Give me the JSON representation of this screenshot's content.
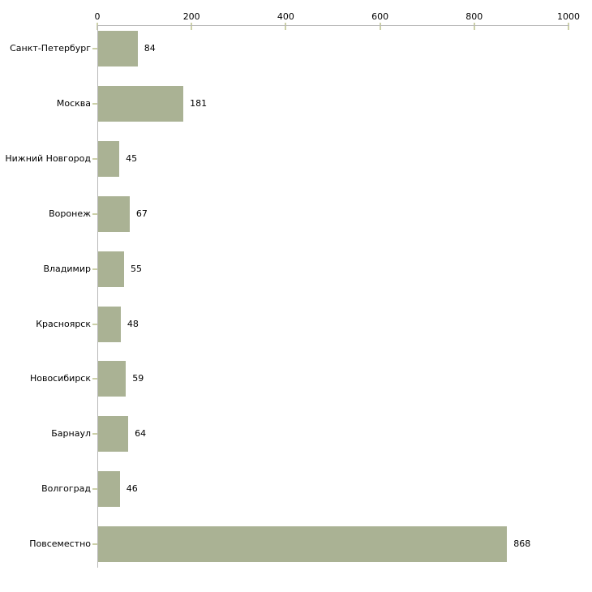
{
  "chart_data": {
    "type": "bar",
    "orientation": "horizontal",
    "title": "",
    "xlabel": "",
    "ylabel": "",
    "categories": [
      "Санкт-Петербург",
      "Москва",
      "Нижний Новгород",
      "Воронеж",
      "Владимир",
      "Красноярск",
      "Новосибирск",
      "Барнаул",
      "Волгоград",
      "Повсеместно"
    ],
    "values": [
      84,
      181,
      45,
      67,
      55,
      48,
      59,
      64,
      46,
      868
    ],
    "value_labels": [
      "84",
      "181",
      "45",
      "67",
      "55",
      "48",
      "59",
      "64",
      "46",
      "868"
    ],
    "xlim": [
      0,
      1000
    ],
    "x_ticks": [
      0,
      200,
      400,
      600,
      800,
      1000
    ],
    "x_tick_labels": [
      "0",
      "200",
      "400",
      "600",
      "800",
      "1000"
    ],
    "grid": false,
    "legend": "none",
    "colors": {
      "bar_fill": "#aab294",
      "axis_line": "#b9b9b9",
      "tick_mark": "#ccd0a8",
      "text": "#000000",
      "background": "#ffffff"
    }
  }
}
